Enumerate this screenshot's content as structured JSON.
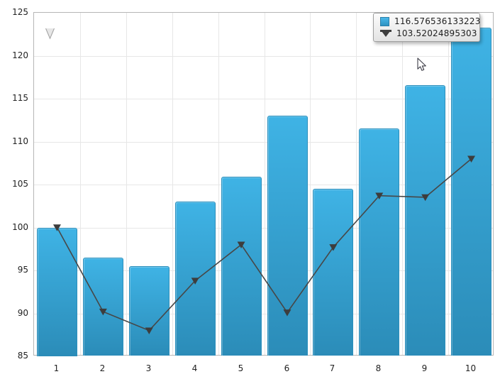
{
  "chart_data": {
    "type": "bar",
    "subtype": "combo-bar-line",
    "title": "",
    "xlabel": "",
    "ylabel": "",
    "categories": [
      "1",
      "2",
      "3",
      "4",
      "5",
      "6",
      "7",
      "8",
      "9",
      "10"
    ],
    "yticks": [
      85,
      90,
      95,
      100,
      105,
      110,
      115,
      120,
      125
    ],
    "ylim": [
      85,
      125
    ],
    "grid": true,
    "legend_position": "none",
    "series": [
      {
        "name": "bar-series",
        "type": "bar",
        "color_top": "#3fb3e5",
        "color_bottom": "#2b8cb8",
        "border_color": "#2c8fbc",
        "values": [
          100,
          96.5,
          95.5,
          103,
          105.9,
          113,
          104.5,
          111.5,
          116.576536133223,
          123.3
        ]
      },
      {
        "name": "line-series",
        "type": "line",
        "color": "#474747",
        "marker": "triangle-down",
        "marker_color": "#3d3d3d",
        "values": [
          100,
          90.2,
          88,
          93.8,
          98,
          90.1,
          97.7,
          103.7,
          103.52024895303,
          108
        ]
      }
    ]
  },
  "tooltip": {
    "hovered_category": "9",
    "bar_value": "116.576536133223",
    "line_value": "103.52024895303"
  },
  "colors": {
    "plot_border": "#b6b6b6",
    "gridline": "#e7e7e7",
    "axis_text": "#222222",
    "tooltip_border": "#9f9f9f",
    "tooltip_bg": "#eeeeee"
  }
}
